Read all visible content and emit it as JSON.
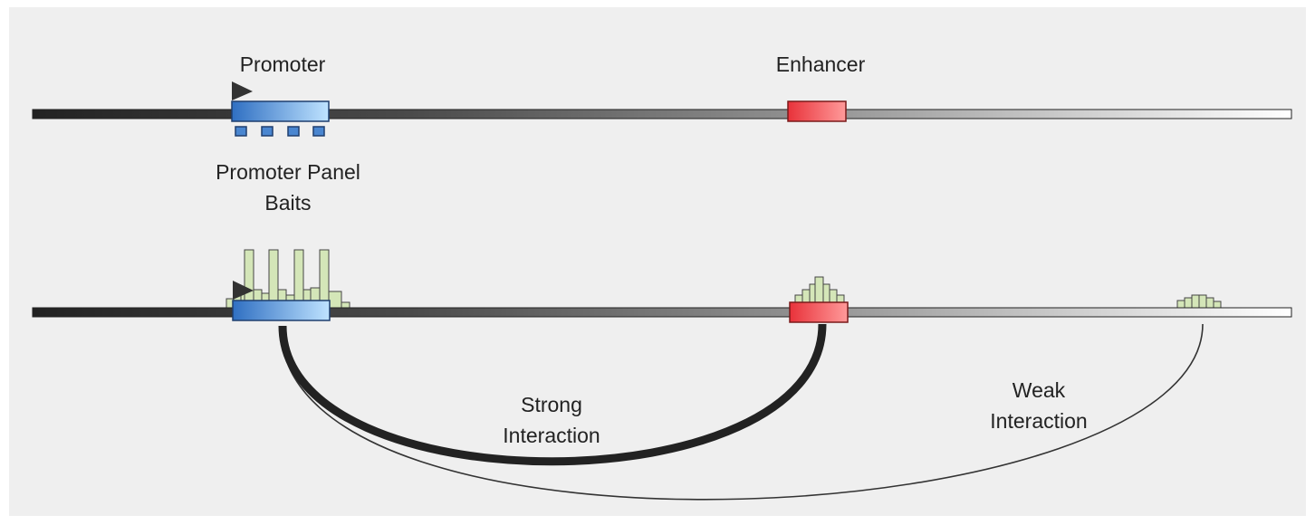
{
  "labels": {
    "promoter": "Promoter",
    "enhancer": "Enhancer",
    "baits_line1": "Promoter Panel",
    "baits_line2": "Baits",
    "strong_line1": "Strong",
    "strong_line2": "Interaction",
    "weak_line1": "Weak",
    "weak_line2": "Interaction"
  },
  "colors": {
    "panel_background": "#efefef",
    "promoter_blue_dark": "#2f6fc2",
    "promoter_blue_light": "#bfe3ff",
    "enhancer_red_dark": "#e8323a",
    "enhancer_red_light": "#ff9a9a",
    "peak_green": "#d4e6b8",
    "chromosome_dark": "#2a2a2a",
    "chromosome_light": "#ffffff",
    "tss_arrow": "#333333"
  },
  "icons": {
    "tss": "tss-arrow-icon"
  }
}
